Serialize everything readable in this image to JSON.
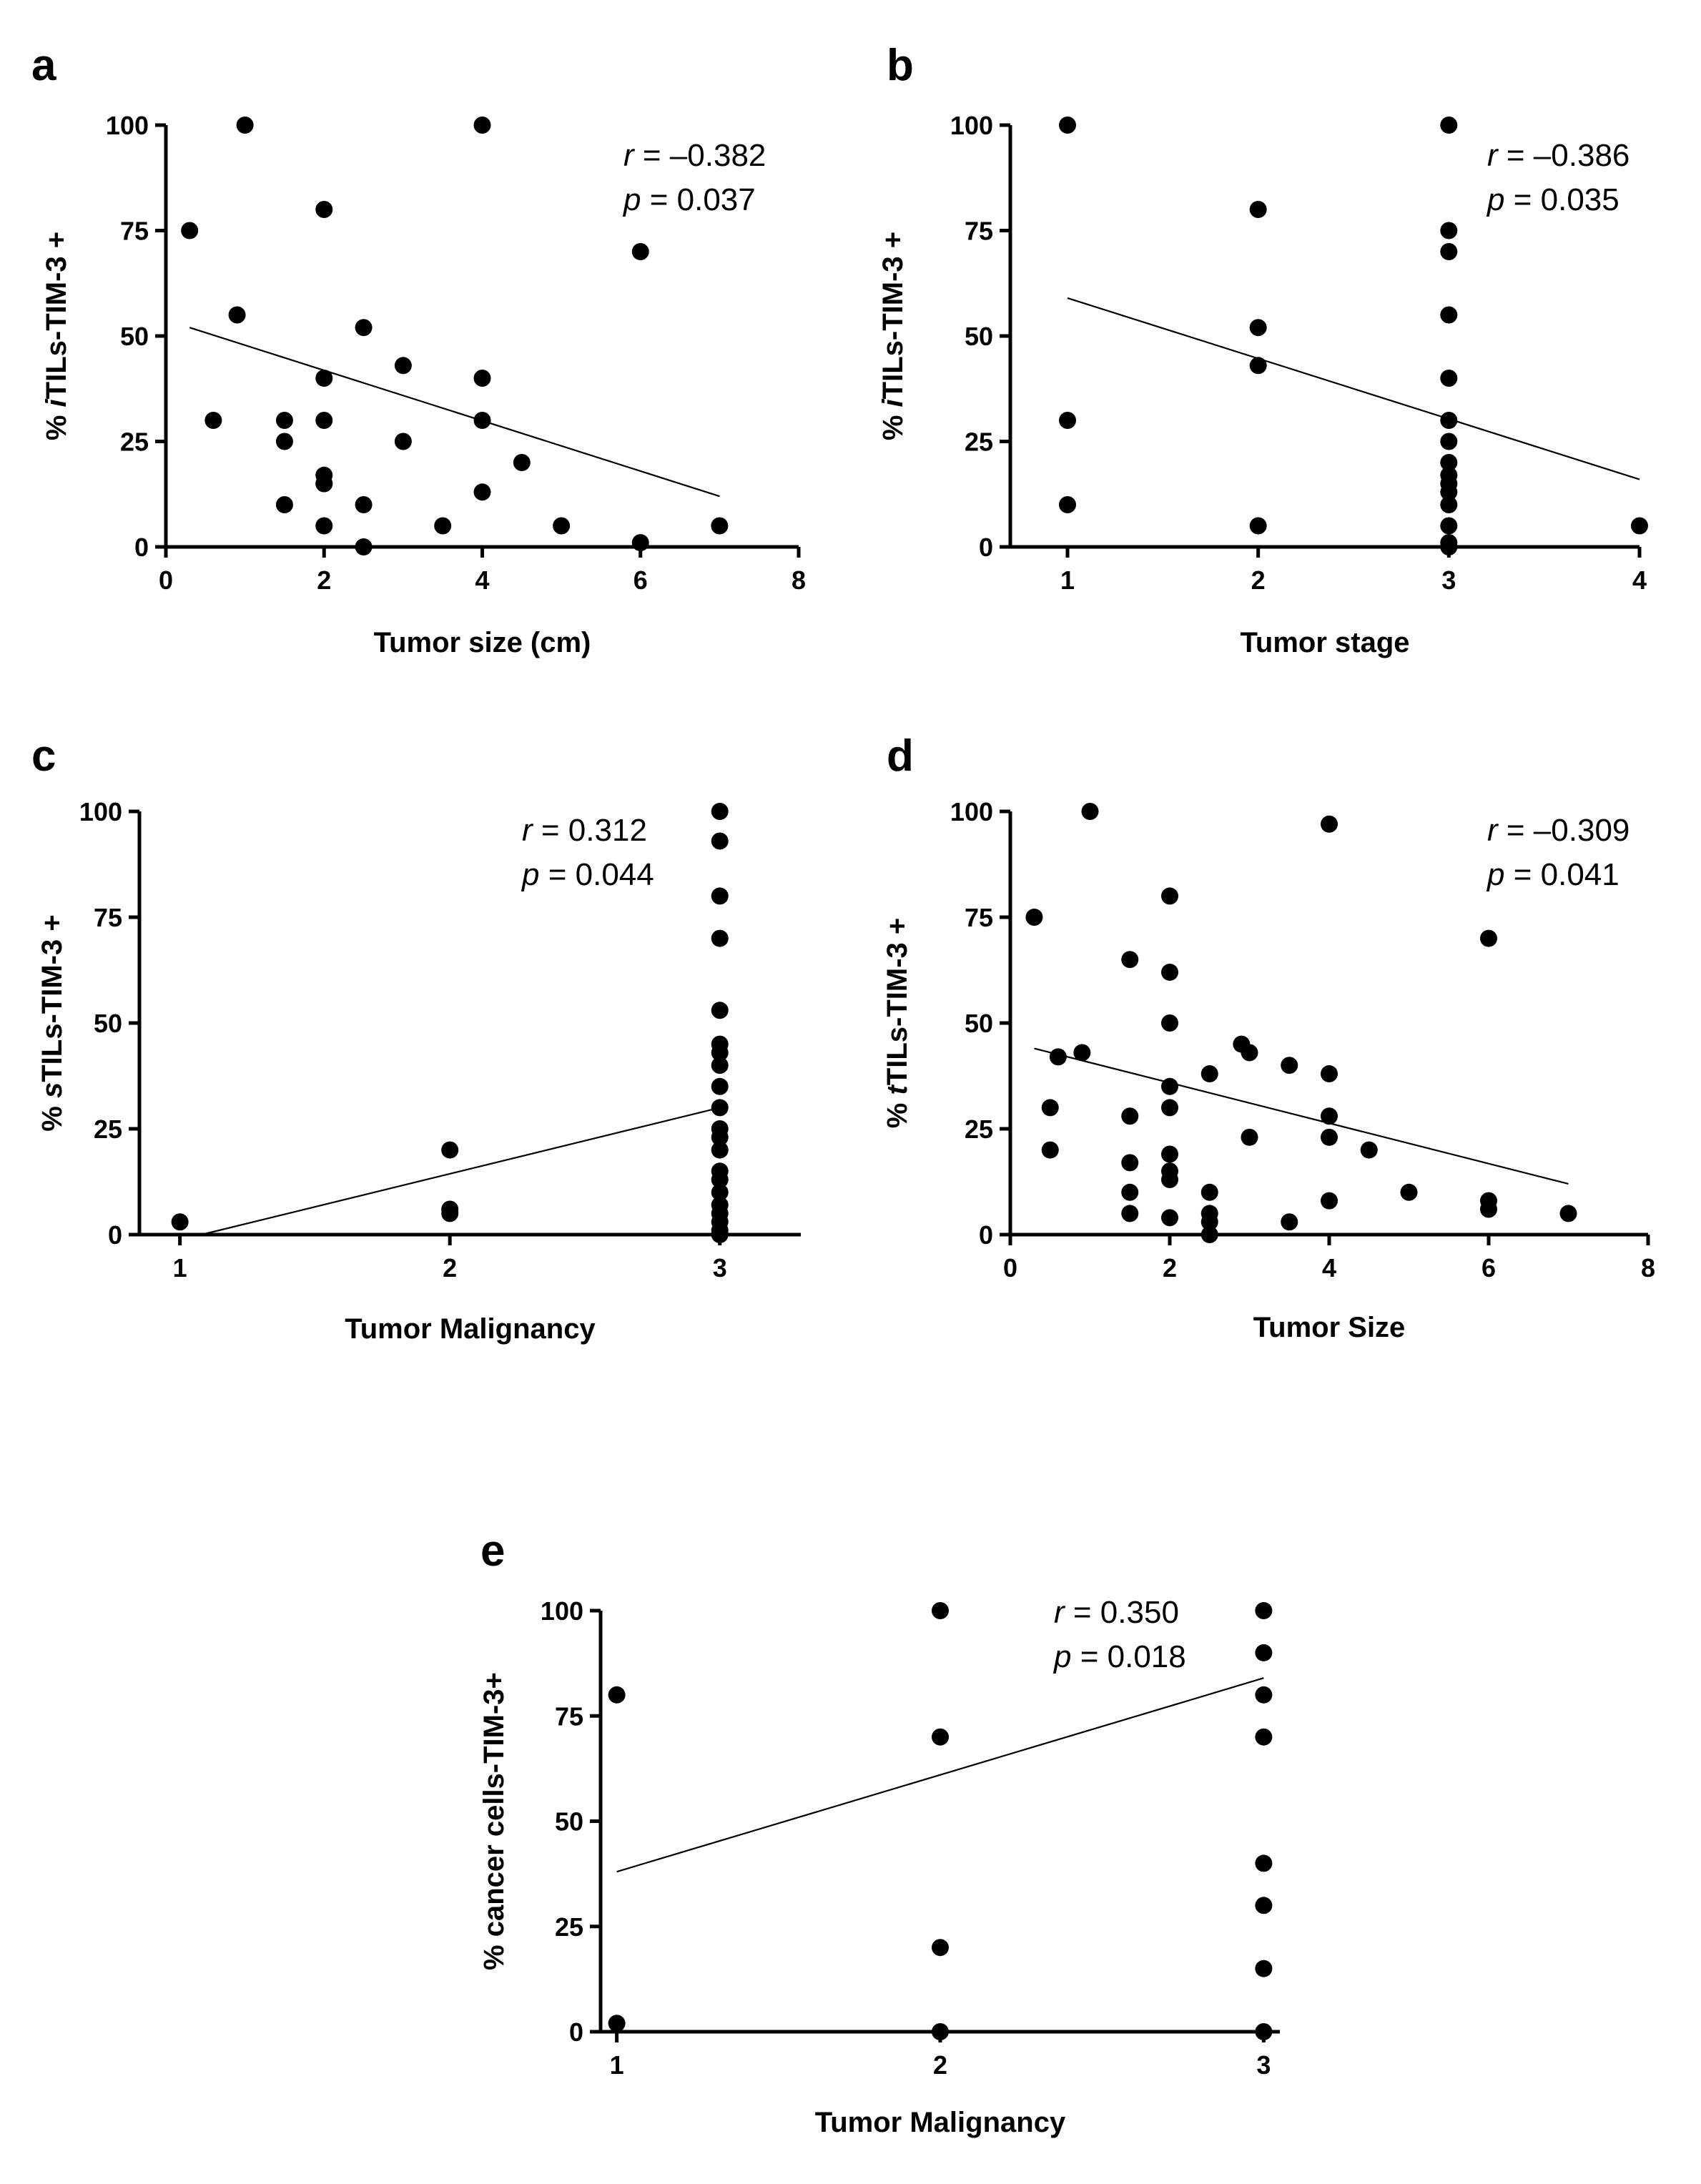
{
  "colors": {
    "points": "#000000",
    "axes": "#000000",
    "background": "#ffffff"
  },
  "chart_data": [
    {
      "id": "a",
      "type": "scatter",
      "panel_label": "a",
      "xlabel": "Tumor size (cm)",
      "ylabel": {
        "prefix": "% ",
        "italic": "i",
        "suffix": "TILs-TIM-3 +"
      },
      "xlim": [
        0,
        8
      ],
      "ylim": [
        0,
        100
      ],
      "xticks": [
        0,
        2,
        4,
        6,
        8
      ],
      "xtick_labels": [
        "0",
        "2",
        "4",
        "6",
        "8"
      ],
      "yticks": [
        0,
        25,
        50,
        75,
        100
      ],
      "ytick_labels": [
        "0",
        "25",
        "50",
        "75",
        "100"
      ],
      "stats": {
        "r_symbol": "r",
        "r_text": " = –0.382",
        "p_symbol": "p",
        "p_text": " = 0.037"
      },
      "fit_line": {
        "x": [
          0.3,
          7
        ],
        "y": [
          52,
          12
        ]
      },
      "points": {
        "x": [
          0.3,
          0.6,
          0.9,
          1.0,
          1.5,
          1.5,
          1.5,
          2.0,
          2.0,
          2.0,
          2.0,
          2.0,
          2.0,
          2.0,
          2.5,
          2.5,
          2.5,
          3.0,
          3.0,
          3.5,
          4.0,
          4.0,
          4.0,
          4.0,
          4.5,
          5.0,
          6.0,
          6.0,
          7.0
        ],
        "y": [
          75,
          30,
          55,
          100,
          30,
          25,
          10,
          80,
          40,
          30,
          17,
          15,
          5,
          15,
          52,
          10,
          0,
          43,
          25,
          5,
          100,
          40,
          30,
          13,
          20,
          5,
          70,
          1,
          5
        ]
      }
    },
    {
      "id": "b",
      "type": "scatter",
      "panel_label": "b",
      "xlabel": "Tumor stage",
      "ylabel": {
        "prefix": "% ",
        "italic": "i",
        "suffix": "TILs-TIM-3 +"
      },
      "xlim": [
        0.7,
        4
      ],
      "ylim": [
        0,
        100
      ],
      "xticks": [
        1,
        2,
        3,
        4
      ],
      "xtick_labels": [
        "1",
        "2",
        "3",
        "4"
      ],
      "yticks": [
        0,
        25,
        50,
        75,
        100
      ],
      "ytick_labels": [
        "0",
        "25",
        "50",
        "75",
        "100"
      ],
      "stats": {
        "r_symbol": "r",
        "r_text": " = –0.386",
        "p_symbol": "p",
        "p_text": " = 0.035"
      },
      "fit_line": {
        "x": [
          1,
          4
        ],
        "y": [
          59,
          16
        ]
      },
      "points": {
        "x": [
          1,
          1,
          1,
          2,
          2,
          2,
          2,
          3,
          3,
          3,
          3,
          3,
          3,
          3,
          3,
          3,
          3,
          3,
          3,
          3,
          3,
          3,
          4
        ],
        "y": [
          100,
          30,
          10,
          80,
          52,
          43,
          5,
          100,
          75,
          70,
          55,
          40,
          30,
          25,
          20,
          17,
          15,
          13,
          10,
          5,
          1,
          0,
          5
        ]
      }
    },
    {
      "id": "c",
      "type": "scatter",
      "panel_label": "c",
      "xlabel": "Tumor Malignancy",
      "ylabel": {
        "prefix": "% ",
        "italic": "s",
        "suffix": "TILs-TIM-3 +"
      },
      "xlim": [
        0.85,
        3.3
      ],
      "ylim": [
        0,
        100
      ],
      "xticks": [
        1,
        2,
        3
      ],
      "xtick_labels": [
        "1",
        "2",
        "3"
      ],
      "yticks": [
        0,
        25,
        50,
        75,
        100
      ],
      "ytick_labels": [
        "0",
        "25",
        "50",
        "75",
        "100"
      ],
      "stats": {
        "r_symbol": "r",
        "r_text": " = 0.312",
        "p_symbol": "p",
        "p_text": " = 0.044"
      },
      "fit_line": {
        "x": [
          1.08,
          3
        ],
        "y": [
          0,
          30
        ]
      },
      "points": {
        "x": [
          1,
          2,
          2,
          2,
          3,
          3,
          3,
          3,
          3,
          3,
          3,
          3,
          3,
          3,
          3,
          3,
          3,
          3,
          3,
          3,
          3,
          3,
          3,
          3,
          3
        ],
        "y": [
          3,
          20,
          6,
          5,
          100,
          93,
          80,
          70,
          53,
          45,
          43,
          40,
          35,
          30,
          25,
          23,
          20,
          15,
          13,
          10,
          7,
          5,
          3,
          1,
          0
        ]
      }
    },
    {
      "id": "d",
      "type": "scatter",
      "panel_label": "d",
      "xlabel": "Tumor Size",
      "ylabel": {
        "prefix": "% ",
        "italic": "t",
        "suffix": "TILs-TIM-3 +"
      },
      "xlim": [
        0,
        8
      ],
      "ylim": [
        0,
        100
      ],
      "xticks": [
        0,
        2,
        4,
        6,
        8
      ],
      "xtick_labels": [
        "0",
        "2",
        "4",
        "6",
        "8"
      ],
      "yticks": [
        0,
        25,
        50,
        75,
        100
      ],
      "ytick_labels": [
        "0",
        "25",
        "50",
        "75",
        "100"
      ],
      "stats": {
        "r_symbol": "r",
        "r_text": " = –0.309",
        "p_symbol": "p",
        "p_text": " = 0.041"
      },
      "fit_line": {
        "x": [
          0.3,
          7
        ],
        "y": [
          44,
          12
        ]
      },
      "points": {
        "x": [
          0.3,
          0.5,
          0.5,
          0.6,
          0.9,
          1.0,
          1.5,
          1.5,
          1.5,
          1.5,
          1.5,
          2.0,
          2.0,
          2.0,
          2.0,
          2.0,
          2.0,
          2.0,
          2.0,
          2.0,
          2.5,
          2.5,
          2.5,
          2.5,
          2.5,
          2.9,
          3.0,
          3.0,
          3.5,
          3.5,
          4.0,
          4.0,
          4.0,
          4.0,
          4.0,
          4.5,
          5.0,
          6.0,
          6.0,
          6.0,
          7.0
        ],
        "y": [
          75,
          30,
          20,
          42,
          43,
          100,
          65,
          28,
          17,
          10,
          5,
          80,
          62,
          50,
          35,
          30,
          19,
          15,
          13,
          4,
          38,
          10,
          5,
          3,
          0,
          45,
          43,
          23,
          40,
          3,
          97,
          38,
          28,
          23,
          8,
          20,
          10,
          70,
          8,
          6,
          5
        ]
      }
    },
    {
      "id": "e",
      "type": "scatter",
      "panel_label": "e",
      "xlabel": "Tumor Malignancy",
      "ylabel": {
        "prefix": "% cancer cells-TIM-3+",
        "italic": "",
        "suffix": ""
      },
      "xlim": [
        0.95,
        3.05
      ],
      "ylim": [
        0,
        100
      ],
      "xticks": [
        1,
        2,
        3
      ],
      "xtick_labels": [
        "1",
        "2",
        "3"
      ],
      "yticks": [
        0,
        25,
        50,
        75,
        100
      ],
      "ytick_labels": [
        "0",
        "25",
        "50",
        "75",
        "100"
      ],
      "stats": {
        "r_symbol": "r",
        "r_text": " = 0.350",
        "p_symbol": "p",
        "p_text": " = 0.018"
      },
      "fit_line": {
        "x": [
          1,
          3
        ],
        "y": [
          38,
          84
        ]
      },
      "points": {
        "x": [
          1,
          1,
          2,
          2,
          2,
          2,
          3,
          3,
          3,
          3,
          3,
          3,
          3,
          3
        ],
        "y": [
          80,
          2,
          100,
          70,
          20,
          0,
          100,
          90,
          80,
          70,
          40,
          30,
          15,
          0
        ]
      }
    }
  ]
}
